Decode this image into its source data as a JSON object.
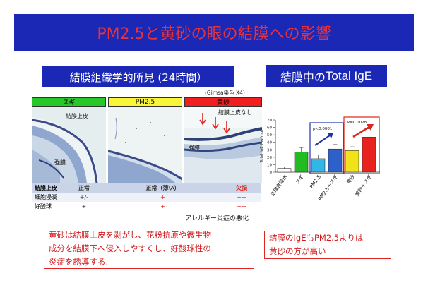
{
  "title": "PM2.5と黄砂の眼の結膜への影響",
  "left_panel": {
    "subtitle": "結膜組織学的所見 (24時間）",
    "stain_note": "(Gimsa染色  X4)",
    "columns": [
      {
        "label": "スギ",
        "color": "#28c828"
      },
      {
        "label": "PM2.5",
        "color": "#fbf53a"
      },
      {
        "label": "黄砂",
        "color": "#f01e1e"
      }
    ],
    "photo_labels": {
      "epithelium": "結膜上皮",
      "sclera": "強膜",
      "no_epithelium": "結膜上皮なし"
    },
    "table": {
      "row_headers": [
        "結膜上皮",
        "細胞浸潤",
        "好酸球"
      ],
      "rows": [
        [
          "正常",
          "正常（薄い）",
          "欠損"
        ],
        [
          "+/-",
          "+",
          "++"
        ],
        [
          "+",
          "+",
          "++"
        ]
      ]
    },
    "allergy_note": "アレルギー炎症の悪化",
    "note": [
      "黄砂は結膜上皮を剥がし、花粉抗原や微生物",
      "成分を結膜下へ侵入しやすくし、好酸球性の",
      "炎症を誘導する."
    ]
  },
  "right_panel": {
    "subtitle_jp": "結膜中の",
    "subtitle_en": "Total IgE",
    "pvalues": [
      "p<0.0001",
      "P=0.0028"
    ],
    "note": [
      "結膜のIgEもPM2.5よりは",
      "黄砂の方が高い"
    ]
  },
  "chart_data": {
    "type": "bar",
    "ylabel": "Total IgE (ng/mg)",
    "ylim": [
      0,
      70
    ],
    "yticks": [
      0,
      10,
      20,
      30,
      40,
      50,
      60,
      70
    ],
    "categories": [
      "生理食塩水",
      "スギ",
      "PM2.5",
      "PM2.5＋スギ",
      "黄砂",
      "黄砂＋スギ"
    ],
    "values": [
      5,
      27,
      18,
      31,
      29,
      47
    ],
    "errors": [
      2,
      6,
      5,
      6,
      5,
      11
    ],
    "colors": [
      "#ffffff",
      "#22bb22",
      "#33b5e5",
      "#2d60c8",
      "#f2e21a",
      "#e8231e"
    ]
  }
}
